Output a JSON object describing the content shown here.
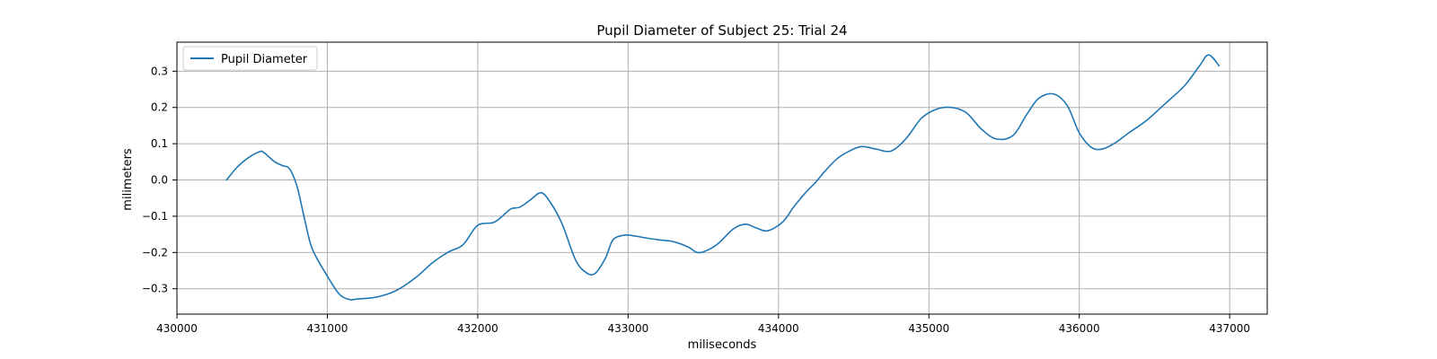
{
  "chart_data": {
    "type": "line",
    "title": "Pupil Diameter of Subject 25: Trial 24",
    "xlabel": "miliseconds",
    "ylabel": "milimeters",
    "xlim": [
      430000,
      437250
    ],
    "ylim": [
      -0.37,
      0.38
    ],
    "xticks": [
      430000,
      431000,
      432000,
      433000,
      434000,
      435000,
      436000,
      437000
    ],
    "xtick_labels": [
      "430000",
      "431000",
      "432000",
      "433000",
      "434000",
      "435000",
      "436000",
      "437000"
    ],
    "yticks": [
      -0.3,
      -0.2,
      -0.1,
      0.0,
      0.1,
      0.2,
      0.3
    ],
    "ytick_labels": [
      "−0.3",
      "−0.2",
      "−0.1",
      "0.0",
      "0.1",
      "0.2",
      "0.3"
    ],
    "grid": true,
    "legend_position": "top-left",
    "color": "#1f77b4",
    "series": [
      {
        "name": "Pupil Diameter",
        "x": [
          430330,
          430400,
          430470,
          430550,
          430580,
          430650,
          430700,
          430750,
          430800,
          430850,
          430900,
          431000,
          431080,
          431150,
          431200,
          431300,
          431400,
          431480,
          431600,
          431700,
          431800,
          431880,
          431920,
          432000,
          432100,
          432150,
          432220,
          432280,
          432350,
          432420,
          432480,
          432560,
          432650,
          432720,
          432780,
          432850,
          432900,
          432980,
          433050,
          433120,
          433200,
          433300,
          433400,
          433460,
          433520,
          433600,
          433700,
          433780,
          433850,
          433930,
          434030,
          434100,
          434180,
          434250,
          434300,
          434380,
          434450,
          434550,
          434650,
          434750,
          434850,
          434950,
          435050,
          435150,
          435250,
          435350,
          435450,
          435560,
          435650,
          435730,
          435830,
          435920,
          436000,
          436080,
          436150,
          436230,
          436330,
          436450,
          436570,
          436700,
          436800,
          436860,
          436930
        ],
        "y": [
          0.0,
          0.035,
          0.06,
          0.078,
          0.075,
          0.05,
          0.04,
          0.03,
          -0.02,
          -0.11,
          -0.19,
          -0.265,
          -0.315,
          -0.33,
          -0.328,
          -0.325,
          -0.315,
          -0.3,
          -0.265,
          -0.228,
          -0.2,
          -0.185,
          -0.17,
          -0.125,
          -0.118,
          -0.105,
          -0.08,
          -0.075,
          -0.055,
          -0.035,
          -0.06,
          -0.12,
          -0.22,
          -0.255,
          -0.258,
          -0.215,
          -0.165,
          -0.152,
          -0.155,
          -0.16,
          -0.165,
          -0.17,
          -0.185,
          -0.2,
          -0.195,
          -0.175,
          -0.135,
          -0.122,
          -0.132,
          -0.14,
          -0.115,
          -0.075,
          -0.035,
          -0.005,
          0.02,
          0.055,
          0.075,
          0.092,
          0.085,
          0.08,
          0.115,
          0.17,
          0.195,
          0.2,
          0.185,
          0.14,
          0.113,
          0.123,
          0.18,
          0.225,
          0.237,
          0.205,
          0.13,
          0.09,
          0.085,
          0.1,
          0.13,
          0.165,
          0.21,
          0.26,
          0.315,
          0.345,
          0.315
        ]
      }
    ]
  }
}
